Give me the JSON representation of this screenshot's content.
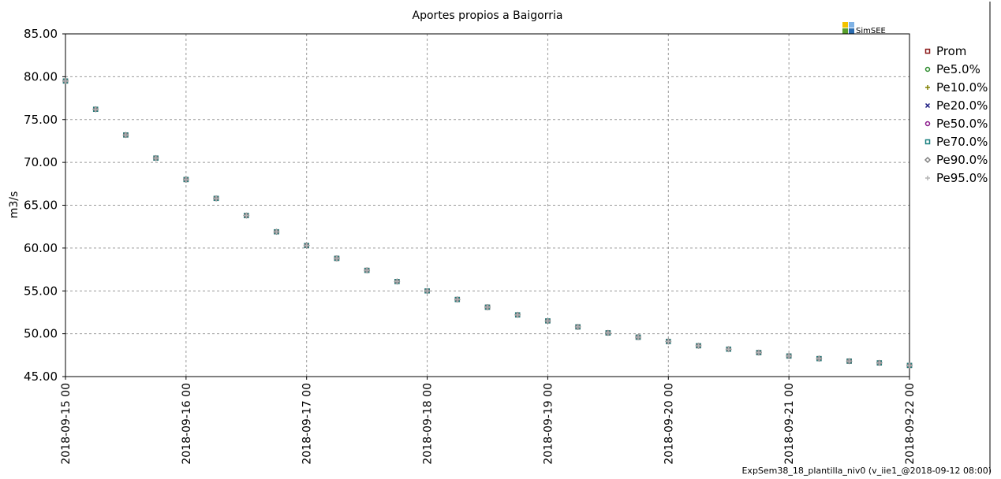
{
  "chart_data": {
    "type": "scatter",
    "title": "Aportes propios a Baigorria",
    "y_label": "m3/s",
    "logo": "SimSEE",
    "footer": "ExpSem38_18_plantilla_niv0 (v_iie1_@2018-09-12 08:00)",
    "grid": true,
    "legend": "right",
    "x": [
      "2018-09-15 00",
      "2018-09-15 06",
      "2018-09-15 12",
      "2018-09-15 18",
      "2018-09-16 00",
      "2018-09-16 06",
      "2018-09-16 12",
      "2018-09-16 18",
      "2018-09-17 00",
      "2018-09-17 06",
      "2018-09-17 12",
      "2018-09-17 18",
      "2018-09-18 00",
      "2018-09-18 06",
      "2018-09-18 12",
      "2018-09-18 18",
      "2018-09-19 00",
      "2018-09-19 06",
      "2018-09-19 12",
      "2018-09-19 18",
      "2018-09-20 00",
      "2018-09-20 06",
      "2018-09-20 12",
      "2018-09-20 18",
      "2018-09-21 00",
      "2018-09-21 06",
      "2018-09-21 12",
      "2018-09-21 18",
      "2018-09-22 00"
    ],
    "xlim": [
      "2018-09-15 00",
      "2018-09-22 00"
    ],
    "xticks": [
      "2018-09-15 00",
      "2018-09-16 00",
      "2018-09-17 00",
      "2018-09-18 00",
      "2018-09-19 00",
      "2018-09-20 00",
      "2018-09-21 00",
      "2018-09-22 00"
    ],
    "ylim": [
      45,
      85
    ],
    "yticks": [
      {
        "value": 45,
        "label": "45.00"
      },
      {
        "value": 50,
        "label": "50.00"
      },
      {
        "value": 55,
        "label": "55.00"
      },
      {
        "value": 60,
        "label": "60.00"
      },
      {
        "value": 65,
        "label": "65.00"
      },
      {
        "value": 70,
        "label": "70.00"
      },
      {
        "value": 75,
        "label": "75.00"
      },
      {
        "value": 80,
        "label": "80.00"
      },
      {
        "value": 85,
        "label": "85.00"
      }
    ],
    "series": [
      {
        "name": "Prom",
        "color": "#8b1a1a",
        "marker": "square",
        "values": [
          79.5,
          76.2,
          73.2,
          70.5,
          68.0,
          65.8,
          63.8,
          61.9,
          60.3,
          58.8,
          57.4,
          56.1,
          55.0,
          54.0,
          53.1,
          52.2,
          51.5,
          50.8,
          50.1,
          49.6,
          49.1,
          48.6,
          48.2,
          47.8,
          47.4,
          47.1,
          46.8,
          46.6,
          46.3
        ]
      },
      {
        "name": "Pe5.0%",
        "color": "#2e8b2e",
        "marker": "circle",
        "values": [
          79.5,
          76.2,
          73.2,
          70.5,
          68.0,
          65.8,
          63.8,
          61.9,
          60.3,
          58.8,
          57.4,
          56.1,
          55.0,
          54.0,
          53.1,
          52.2,
          51.5,
          50.8,
          50.1,
          49.6,
          49.1,
          48.6,
          48.2,
          47.8,
          47.4,
          47.1,
          46.8,
          46.6,
          46.3
        ]
      },
      {
        "name": "Pe10.0%",
        "color": "#808000",
        "marker": "plus",
        "values": [
          79.5,
          76.2,
          73.2,
          70.5,
          68.0,
          65.8,
          63.8,
          61.9,
          60.3,
          58.8,
          57.4,
          56.1,
          55.0,
          54.0,
          53.1,
          52.2,
          51.5,
          50.8,
          50.1,
          49.6,
          49.1,
          48.6,
          48.2,
          47.8,
          47.4,
          47.1,
          46.8,
          46.6,
          46.3
        ]
      },
      {
        "name": "Pe20.0%",
        "color": "#1a1a80",
        "marker": "cross",
        "values": [
          79.5,
          76.2,
          73.2,
          70.5,
          68.0,
          65.8,
          63.8,
          61.9,
          60.3,
          58.8,
          57.4,
          56.1,
          55.0,
          54.0,
          53.1,
          52.2,
          51.5,
          50.8,
          50.1,
          49.6,
          49.1,
          48.6,
          48.2,
          47.8,
          47.4,
          47.1,
          46.8,
          46.6,
          46.3
        ]
      },
      {
        "name": "Pe50.0%",
        "color": "#8b1a8b",
        "marker": "circle",
        "values": [
          79.5,
          76.2,
          73.2,
          70.5,
          68.0,
          65.8,
          63.8,
          61.9,
          60.3,
          58.8,
          57.4,
          56.1,
          55.0,
          54.0,
          53.1,
          52.2,
          51.5,
          50.8,
          50.1,
          49.6,
          49.1,
          48.6,
          48.2,
          47.8,
          47.4,
          47.1,
          46.8,
          46.6,
          46.3
        ]
      },
      {
        "name": "Pe70.0%",
        "color": "#1a8080",
        "marker": "square",
        "values": [
          79.5,
          76.2,
          73.2,
          70.5,
          68.0,
          65.8,
          63.8,
          61.9,
          60.3,
          58.8,
          57.4,
          56.1,
          55.0,
          54.0,
          53.1,
          52.2,
          51.5,
          50.8,
          50.1,
          49.6,
          49.1,
          48.6,
          48.2,
          47.8,
          47.4,
          47.1,
          46.8,
          46.6,
          46.3
        ]
      },
      {
        "name": "Pe90.0%",
        "color": "#808080",
        "marker": "diamond",
        "values": [
          79.5,
          76.2,
          73.2,
          70.5,
          68.0,
          65.8,
          63.8,
          61.9,
          60.3,
          58.8,
          57.4,
          56.1,
          55.0,
          54.0,
          53.1,
          52.2,
          51.5,
          50.8,
          50.1,
          49.6,
          49.1,
          48.6,
          48.2,
          47.8,
          47.4,
          47.1,
          46.8,
          46.6,
          46.3
        ]
      },
      {
        "name": "Pe95.0%",
        "color": "#b4b4b4",
        "marker": "plus",
        "values": [
          79.5,
          76.2,
          73.2,
          70.5,
          68.0,
          65.8,
          63.8,
          61.9,
          60.3,
          58.8,
          57.4,
          56.1,
          55.0,
          54.0,
          53.1,
          52.2,
          51.5,
          50.8,
          50.1,
          49.6,
          49.1,
          48.6,
          48.2,
          47.8,
          47.4,
          47.1,
          46.8,
          46.6,
          46.3
        ]
      }
    ]
  }
}
